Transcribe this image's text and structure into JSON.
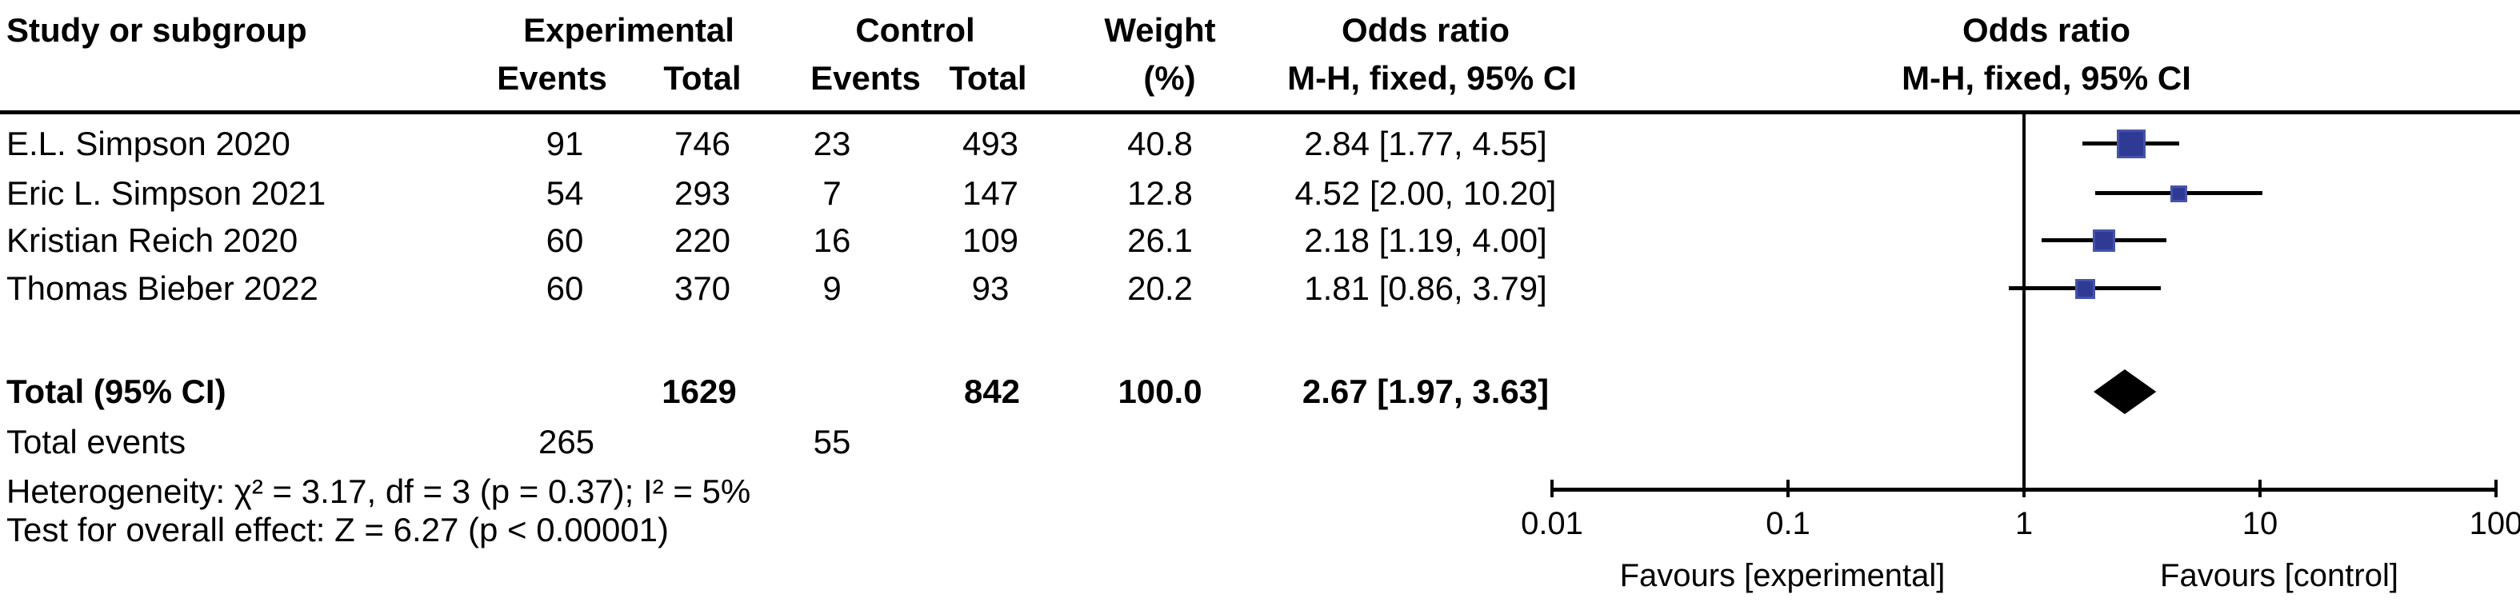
{
  "header": {
    "study": "Study or subgroup",
    "experimental": "Experimental",
    "control": "Control",
    "weight_line1": "Weight",
    "weight_line2": "(%)",
    "or_stat_line1": "Odds ratio",
    "or_stat_line2": "M-H, fixed, 95% CI",
    "or_plot_line1": "Odds ratio",
    "or_plot_line2": "M-H, fixed, 95% CI",
    "exp_events": "Events",
    "exp_total": "Total",
    "ctl_events": "Events",
    "ctl_total": "Total"
  },
  "table": {
    "rows": [
      {
        "study": "E.L. Simpson 2020",
        "exp_events": "91",
        "exp_total": "746",
        "ctl_events": "23",
        "ctl_total": "493",
        "weight": "40.8",
        "or_ci": "2.84 [1.77, 4.55]"
      },
      {
        "study": "Eric L. Simpson 2021",
        "exp_events": "54",
        "exp_total": "293",
        "ctl_events": "7",
        "ctl_total": "147",
        "weight": "12.8",
        "or_ci": "4.52 [2.00, 10.20]"
      },
      {
        "study": "Kristian Reich 2020",
        "exp_events": "60",
        "exp_total": "220",
        "ctl_events": "16",
        "ctl_total": "109",
        "weight": "26.1",
        "or_ci": "2.18 [1.19, 4.00]"
      },
      {
        "study": "Thomas Bieber 2022",
        "exp_events": "60",
        "exp_total": "370",
        "ctl_events": "9",
        "ctl_total": "93",
        "weight": "20.2",
        "or_ci": "1.81 [0.86, 3.79]"
      }
    ],
    "total_row": {
      "label": "Total (95% CI)",
      "exp_total": "1629",
      "ctl_total": "842",
      "weight": "100.0",
      "or_ci": "2.67 [1.97, 3.63]"
    },
    "total_events": {
      "label": "Total events",
      "exp": "265",
      "ctl": "55"
    }
  },
  "footer": {
    "heterogeneity": "Heterogeneity: χ² = 3.17, df = 3 (p = 0.37); I² = 5%",
    "overall_effect": "Test for overall effect: Z = 6.27 (p < 0.00001)"
  },
  "axis": {
    "tick_labels": [
      "0.01",
      "0.1",
      "1",
      "10",
      "100"
    ],
    "favours_left": "Favours [experimental]",
    "favours_right": "Favours [control]"
  },
  "colors": {
    "marker": "#2e3a94",
    "marker_border": "#4753a8",
    "diamond": "#000000",
    "line": "#000000"
  },
  "chart_data": {
    "type": "forest",
    "effect_measure": "Odds ratio, M-H, fixed, 95% CI",
    "scale": "log10",
    "x_ticks": [
      0.01,
      0.1,
      1,
      10,
      100
    ],
    "xlim": [
      0.01,
      100
    ],
    "null_line": 1,
    "studies": [
      {
        "label": "E.L. Simpson 2020",
        "or": 2.84,
        "ci_low": 1.77,
        "ci_high": 4.55,
        "weight_pct": 40.8
      },
      {
        "label": "Eric L. Simpson 2021",
        "or": 4.52,
        "ci_low": 2.0,
        "ci_high": 10.2,
        "weight_pct": 12.8
      },
      {
        "label": "Kristian Reich 2020",
        "or": 2.18,
        "ci_low": 1.19,
        "ci_high": 4.0,
        "weight_pct": 26.1
      },
      {
        "label": "Thomas Bieber 2022",
        "or": 1.81,
        "ci_low": 0.86,
        "ci_high": 3.79,
        "weight_pct": 20.2
      }
    ],
    "total": {
      "label": "Total (95% CI)",
      "or": 2.67,
      "ci_low": 1.97,
      "ci_high": 3.63,
      "weight_pct": 100.0
    },
    "heterogeneity": {
      "chi2": 3.17,
      "df": 3,
      "p": 0.37,
      "i2_pct": 5
    },
    "overall_effect": {
      "z": 6.27,
      "p": "< 0.00001"
    },
    "xlabel_left": "Favours [experimental]",
    "xlabel_right": "Favours [control]"
  }
}
